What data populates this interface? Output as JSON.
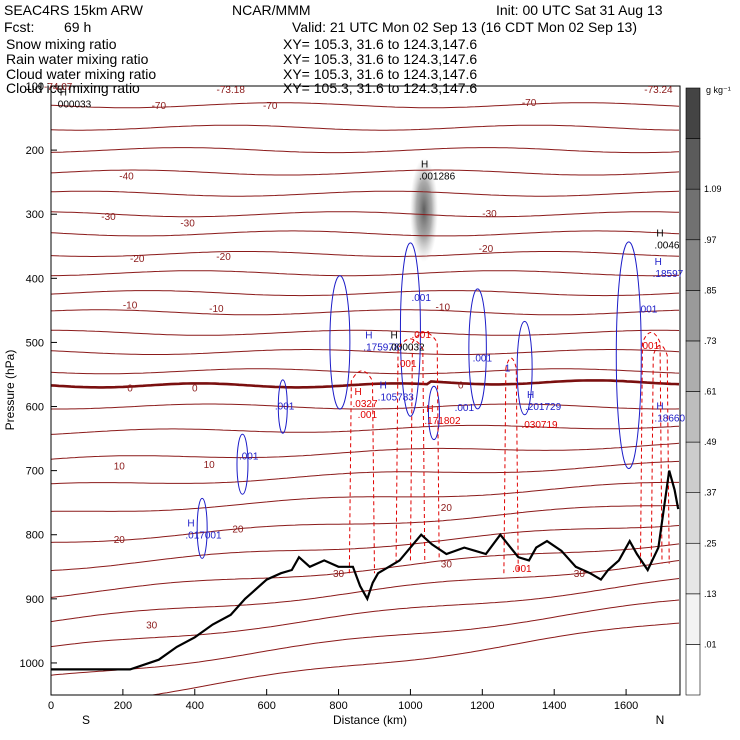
{
  "header": {
    "model": "SEAC4RS 15km ARW",
    "center": "NCAR/MMM",
    "init": "Init: 00 UTC Sat 31 Aug 13",
    "fcst_label": "Fcst:",
    "fcst_value": "69 h",
    "valid": "Valid: 21 UTC Mon 02 Sep 13 (16 CDT Mon 02 Sep 13)"
  },
  "fields": [
    {
      "name": "Snow mixing ratio",
      "xy": "XY= 105.3, 31.6 to 124.3,147.6",
      "color": "#000000"
    },
    {
      "name": "Rain water mixing ratio",
      "xy": "XY= 105.3, 31.6 to 124.3,147.6",
      "color": "#e00000"
    },
    {
      "name": "Cloud water mixing ratio",
      "xy": "XY= 105.3, 31.6 to 124.3,147.6",
      "color": "#1c1cc8"
    },
    {
      "name": "Cloud ice mixing ratio",
      "xy": "XY= 105.3, 31.6 to 124.3,147.6",
      "color": "#000000"
    }
  ],
  "chart_data": {
    "type": "cross-section",
    "xlabel": "Distance (km)",
    "ylabel": "Pressure (hPa)",
    "xlim": [
      0,
      1750
    ],
    "ylim": [
      1050,
      100
    ],
    "x_ticks": [
      0,
      200,
      400,
      600,
      800,
      1000,
      1200,
      1400,
      1600
    ],
    "y_ticks": [
      1000,
      900,
      800,
      700,
      600,
      500,
      400,
      300,
      200,
      100
    ],
    "x_end_labels": {
      "left": "S",
      "right": "N"
    },
    "colorbar": {
      "unit": "g kg⁻¹",
      "labels": [
        ".01",
        ".13",
        ".25",
        ".37",
        ".49",
        ".61",
        ".73",
        ".85",
        ".97",
        "1.09"
      ],
      "shades": [
        "#ffffff",
        "#f3f3f3",
        "#e6e6e6",
        "#d9d9d9",
        "#cccccc",
        "#bdbdbd",
        "#adadad",
        "#9a9a9a",
        "#878787",
        "#717171",
        "#5b5b5b",
        "#444444"
      ]
    },
    "temperature_labels": [
      {
        "x": 20,
        "p": 100,
        "text": "-74.07"
      },
      {
        "x": 500,
        "p": 105,
        "text": "-73.18"
      },
      {
        "x": 1690,
        "p": 105,
        "text": "-73.24"
      },
      {
        "x": 300,
        "p": 130,
        "text": "-70"
      },
      {
        "x": 610,
        "p": 130,
        "text": "-70"
      },
      {
        "x": 1330,
        "p": 125,
        "text": "-70"
      },
      {
        "x": 210,
        "p": 240,
        "text": "-40"
      },
      {
        "x": 160,
        "p": 303,
        "text": "-30"
      },
      {
        "x": 380,
        "p": 313,
        "text": "-30"
      },
      {
        "x": 1220,
        "p": 298,
        "text": "-30"
      },
      {
        "x": 240,
        "p": 368,
        "text": "-20"
      },
      {
        "x": 480,
        "p": 365,
        "text": "-20"
      },
      {
        "x": 1210,
        "p": 353,
        "text": "-20"
      },
      {
        "x": 220,
        "p": 441,
        "text": "-10"
      },
      {
        "x": 460,
        "p": 446,
        "text": "-10"
      },
      {
        "x": 1090,
        "p": 444,
        "text": "-10"
      },
      {
        "x": 220,
        "p": 570,
        "text": "0"
      },
      {
        "x": 400,
        "p": 570,
        "text": "0"
      },
      {
        "x": 1140,
        "p": 566,
        "text": "0"
      },
      {
        "x": 190,
        "p": 692,
        "text": "10"
      },
      {
        "x": 440,
        "p": 690,
        "text": "10"
      },
      {
        "x": 1100,
        "p": 757,
        "text": "20"
      },
      {
        "x": 520,
        "p": 790,
        "text": "20"
      },
      {
        "x": 190,
        "p": 807,
        "text": "20"
      },
      {
        "x": 800,
        "p": 860,
        "text": "30"
      },
      {
        "x": 1100,
        "p": 845,
        "text": "30"
      },
      {
        "x": 1470,
        "p": 860,
        "text": "30"
      },
      {
        "x": 280,
        "p": 940,
        "text": "30"
      }
    ],
    "maxima": [
      {
        "x": 30,
        "p": 118,
        "h": "H",
        "value": "000033",
        "color": "#000000"
      },
      {
        "x": 1035,
        "p": 230,
        "h": "H",
        "value": ".001286",
        "color": "#000000"
      },
      {
        "x": 1690,
        "p": 338,
        "h": "H",
        "value": ".0046",
        "color": "#000000"
      },
      {
        "x": 1685,
        "p": 382,
        "h": "H",
        "value": ".18597",
        "color": "#1c1cc8"
      },
      {
        "x": 880,
        "p": 497,
        "h": "H",
        "value": ".175978",
        "color": "#1c1cc8"
      },
      {
        "x": 950,
        "p": 497,
        "h": "H",
        "value": ".000032",
        "color": "#000000"
      },
      {
        "x": 920,
        "p": 575,
        "h": "H",
        "value": ".105783",
        "color": "#1c1cc8"
      },
      {
        "x": 850,
        "p": 585,
        "h": "H",
        "value": ".0327",
        "color": "#e00000"
      },
      {
        "x": 1050,
        "p": 612,
        "h": "H",
        "value": ".171802",
        "color": "#e00000"
      },
      {
        "x": 1330,
        "p": 590,
        "h": "H",
        "value": ".201729",
        "color": "#1c1cc8"
      },
      {
        "x": 1320,
        "p": 618,
        "h": "",
        "value": ".030719",
        "color": "#e00000"
      },
      {
        "x": 1690,
        "p": 608,
        "h": "H",
        "value": ".18660",
        "color": "#1c1cc8"
      },
      {
        "x": 385,
        "p": 790,
        "h": "H",
        "value": ".017001",
        "color": "#1c1cc8"
      }
    ],
    "minor_labels": [
      {
        "x": 1030,
        "p": 435,
        "text": ".001",
        "color": "#1c1cc8"
      },
      {
        "x": 1030,
        "p": 493,
        "text": ".001",
        "color": "#e00000"
      },
      {
        "x": 990,
        "p": 538,
        "text": ".001",
        "color": "#e00000"
      },
      {
        "x": 1200,
        "p": 530,
        "text": ".001",
        "color": "#1c1cc8"
      },
      {
        "x": 1270,
        "p": 545,
        "text": "1",
        "color": "#1c1cc8"
      },
      {
        "x": 880,
        "p": 618,
        "text": ".001",
        "color": "#e00000"
      },
      {
        "x": 650,
        "p": 605,
        "text": ".001",
        "color": "#1c1cc8"
      },
      {
        "x": 550,
        "p": 683,
        "text": ".001",
        "color": "#1c1cc8"
      },
      {
        "x": 1150,
        "p": 607,
        "text": ".001",
        "color": "#1c1cc8"
      },
      {
        "x": 1310,
        "p": 858,
        "text": ".001",
        "color": "#e00000"
      },
      {
        "x": 1660,
        "p": 453,
        "text": ".001",
        "color": "#1c1cc8"
      },
      {
        "x": 1665,
        "p": 510,
        "text": ".001",
        "color": "#e00000"
      }
    ],
    "terrain": [
      [
        0,
        1010
      ],
      [
        220,
        1010
      ],
      [
        300,
        995
      ],
      [
        350,
        975
      ],
      [
        400,
        960
      ],
      [
        450,
        940
      ],
      [
        500,
        925
      ],
      [
        540,
        900
      ],
      [
        560,
        890
      ],
      [
        600,
        870
      ],
      [
        640,
        860
      ],
      [
        670,
        855
      ],
      [
        690,
        835
      ],
      [
        720,
        850
      ],
      [
        760,
        840
      ],
      [
        800,
        850
      ],
      [
        840,
        850
      ],
      [
        860,
        880
      ],
      [
        880,
        900
      ],
      [
        895,
        875
      ],
      [
        910,
        860
      ],
      [
        940,
        850
      ],
      [
        970,
        840
      ],
      [
        1000,
        820
      ],
      [
        1030,
        800
      ],
      [
        1060,
        815
      ],
      [
        1100,
        830
      ],
      [
        1150,
        820
      ],
      [
        1180,
        825
      ],
      [
        1210,
        830
      ],
      [
        1250,
        800
      ],
      [
        1300,
        835
      ],
      [
        1330,
        840
      ],
      [
        1350,
        820
      ],
      [
        1380,
        810
      ],
      [
        1420,
        825
      ],
      [
        1460,
        850
      ],
      [
        1500,
        860
      ],
      [
        1530,
        870
      ],
      [
        1550,
        855
      ],
      [
        1580,
        840
      ],
      [
        1610,
        810
      ],
      [
        1630,
        830
      ],
      [
        1660,
        855
      ],
      [
        1690,
        820
      ],
      [
        1720,
        700
      ],
      [
        1735,
        730
      ],
      [
        1745,
        760
      ]
    ]
  }
}
